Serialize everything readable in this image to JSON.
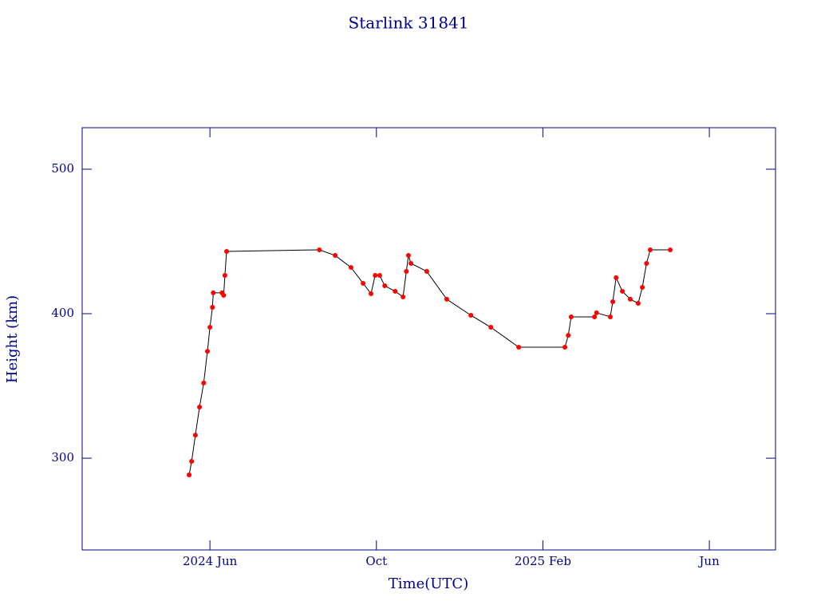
{
  "chart_data": {
    "type": "line",
    "title": "Starlink 31841",
    "x_label": "Time(UTC)",
    "y_label": "Height (km)",
    "xlim": [
      1.93,
      18.59
    ],
    "ylim": [
      236.5,
      528.7
    ],
    "xticks": [
      {
        "value": 5,
        "label": "2024 Jun"
      },
      {
        "value": 9,
        "label": "Oct"
      },
      {
        "value": 13,
        "label": "2025 Feb"
      },
      {
        "value": 17,
        "label": "Jun"
      }
    ],
    "yticks": [
      300,
      400,
      500
    ],
    "series": [
      {
        "color": "#ff0000",
        "x": [
          4.5,
          4.56,
          4.65,
          4.75,
          4.85,
          4.94,
          5.0,
          5.06,
          5.08,
          5.29,
          5.33,
          5.36,
          5.4,
          7.63,
          8.01,
          8.39,
          8.68,
          8.87,
          8.97,
          9.08,
          9.2,
          9.45,
          9.64,
          9.72,
          9.77,
          9.83,
          10.21,
          10.69,
          11.27,
          11.75,
          12.42,
          13.53,
          13.61,
          13.68,
          14.24,
          14.29,
          14.62,
          14.68,
          14.76,
          14.91,
          15.1,
          15.29,
          15.39,
          15.49,
          15.58,
          16.06
        ],
        "values": [
          288.4,
          297.8,
          316,
          335.4,
          352,
          374,
          390.6,
          404.4,
          414.4,
          414.4,
          412.7,
          426.5,
          443.1,
          444.2,
          440.3,
          432,
          421,
          413.8,
          426.5,
          426.5,
          419.3,
          415.5,
          411.6,
          429.3,
          440.3,
          434.8,
          429.3,
          410,
          398.9,
          390.6,
          376.8,
          376.8,
          385,
          397.8,
          397.8,
          400.6,
          397.8,
          408.3,
          424.9,
          415.5,
          410,
          407.2,
          418.2,
          434.8,
          444.2,
          444.2
        ]
      }
    ]
  }
}
